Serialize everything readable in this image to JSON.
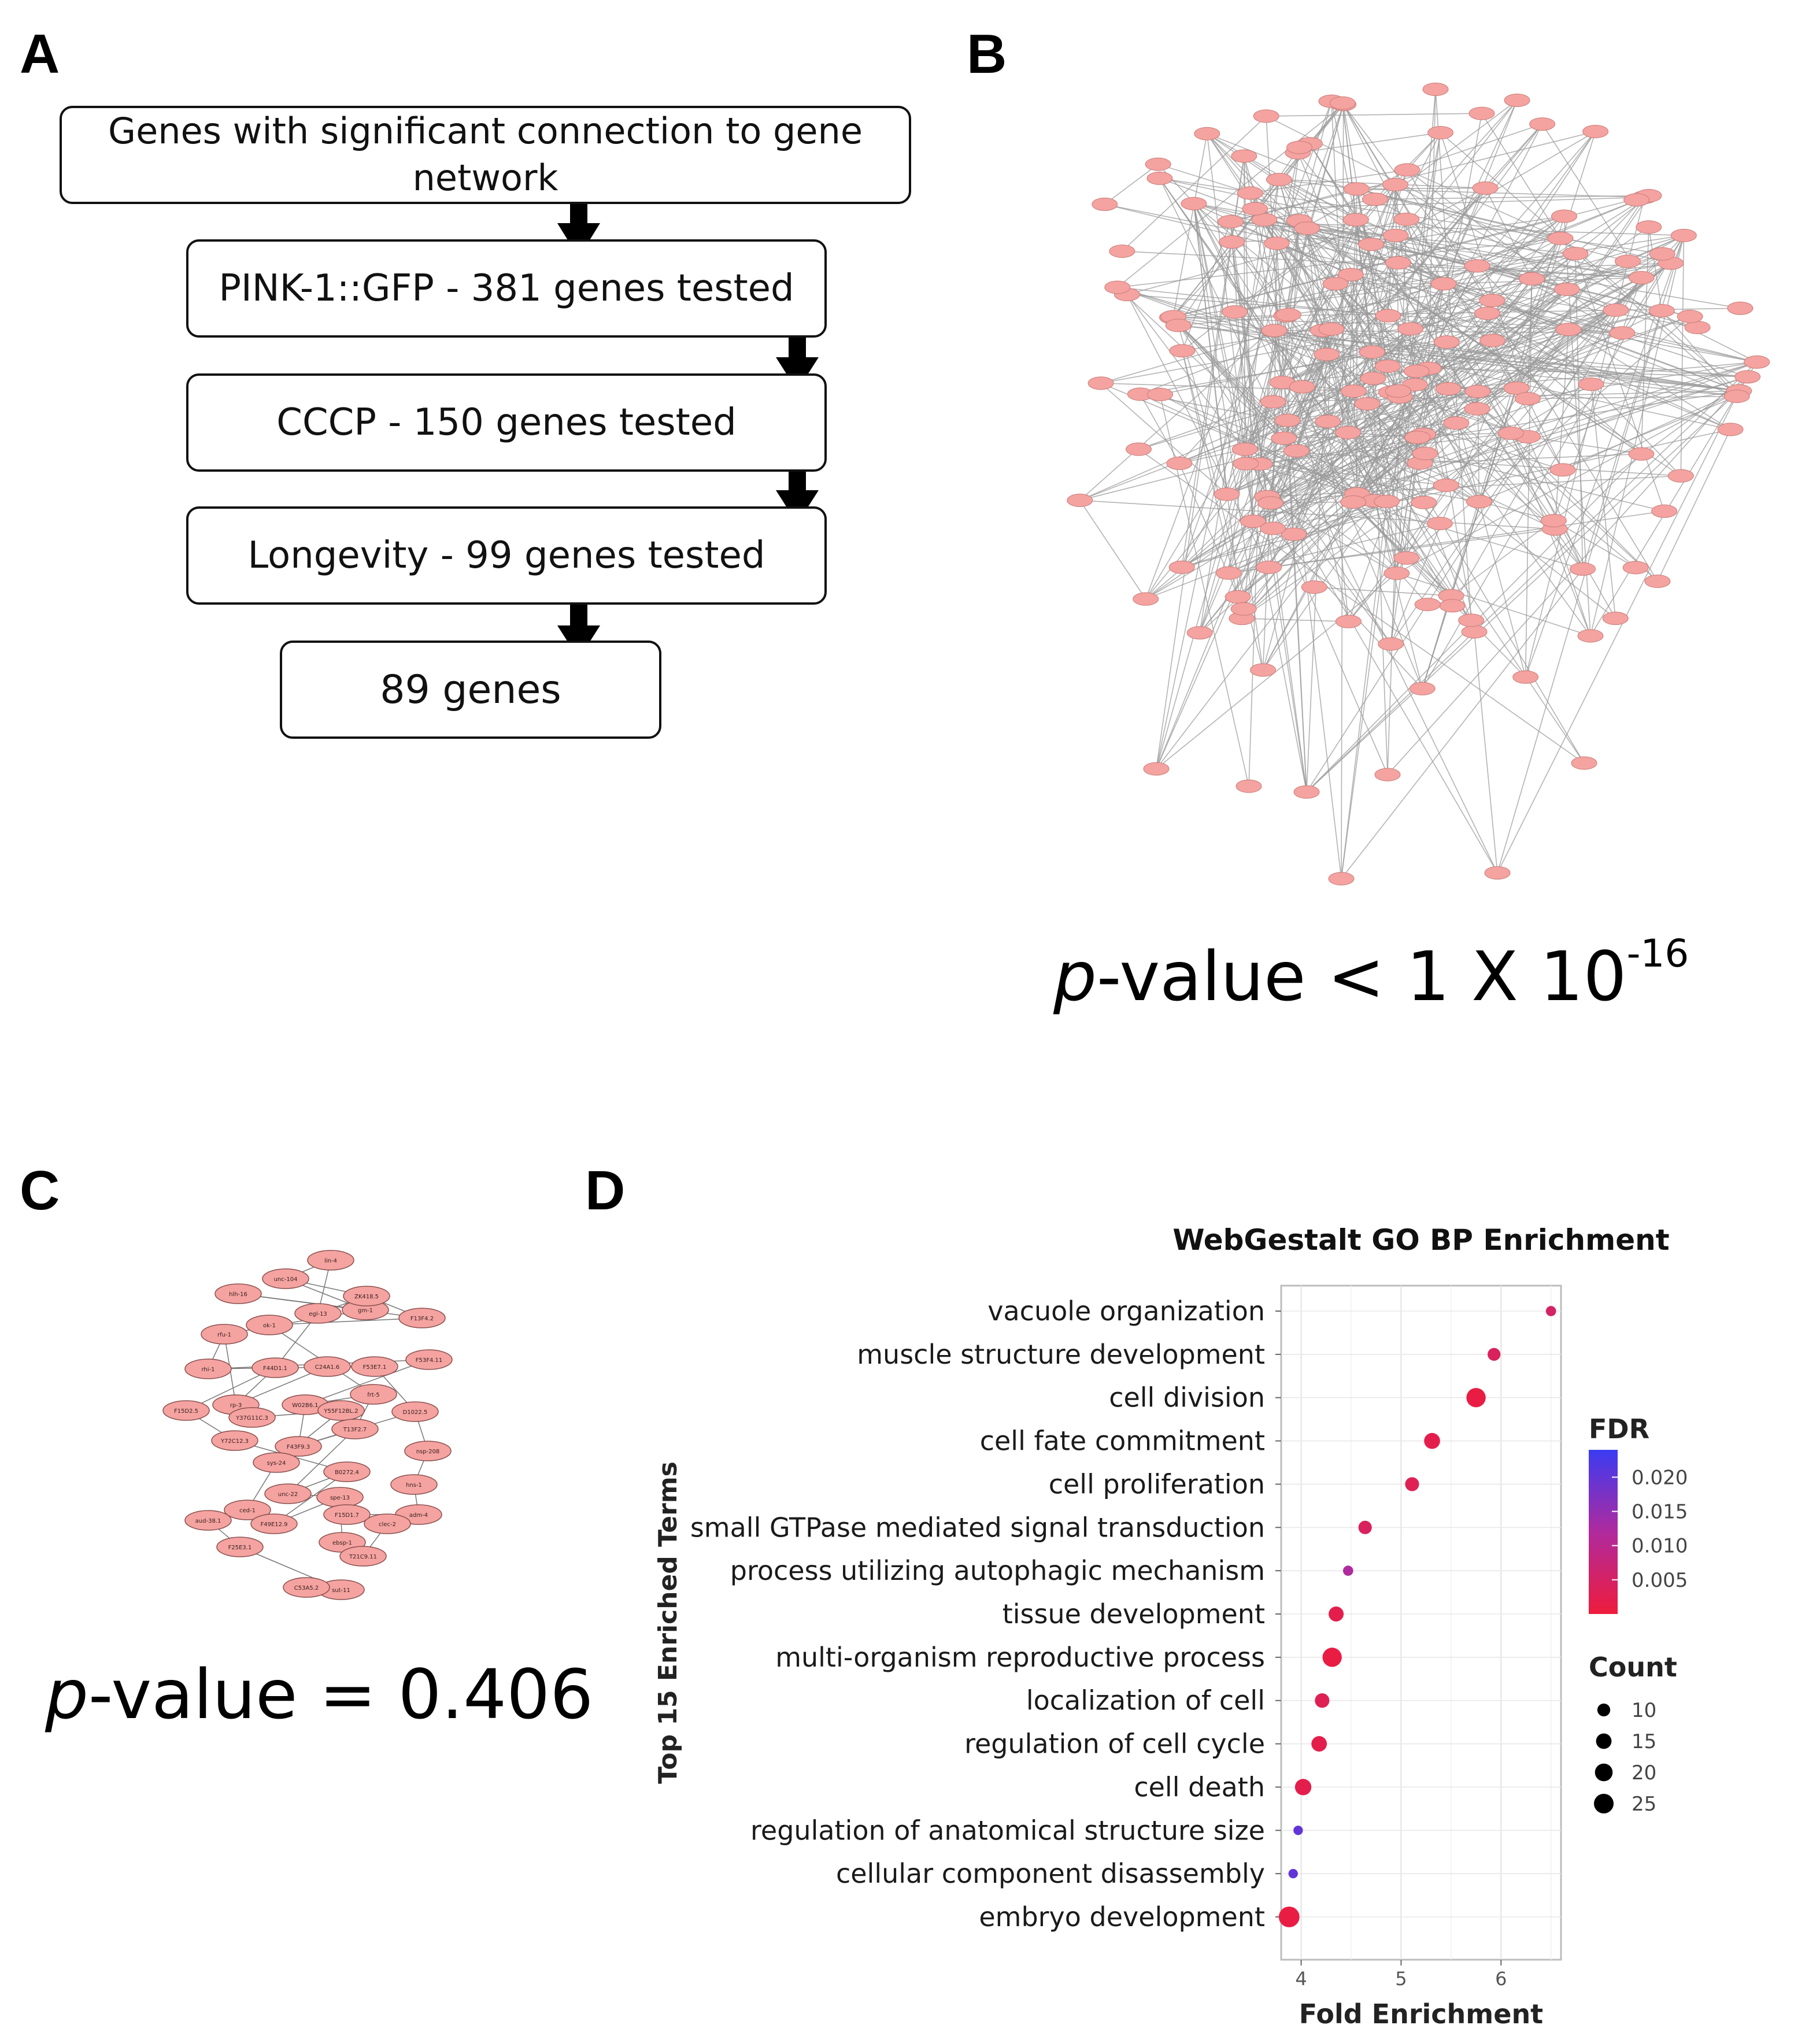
{
  "panels": {
    "a": "A",
    "b": "B",
    "c": "C",
    "d": "D"
  },
  "flowchart": {
    "boxes": [
      "Genes with significant connection to gene network",
      "PINK-1::GFP - 381 genes tested",
      "CCCP - 150 genes tested",
      "Longevity - 99 genes tested",
      "89 genes"
    ]
  },
  "network_b": {
    "p_label": "p",
    "p_rest": "-value < 1 X 10",
    "p_exp": "-16",
    "node_color": "#f4a3a0",
    "edge_color": "#9a9a9a"
  },
  "network_c": {
    "p_label": "p",
    "p_rest": "-value = 0.406",
    "node_labels": [
      "lin-4",
      "unc-104",
      "hlh-16",
      "gm-1",
      "egl-13",
      "ZK418.5",
      "F13F4.2",
      "rfu-1",
      "ok-1",
      "F53F4.11",
      "rhi-1",
      "F44D1.1",
      "rp-3",
      "C24A1.6",
      "F53E7.1",
      "W02B6.1",
      "frt-5",
      "F15D2.5",
      "Y37G11C.3",
      "Y55F12BL.2",
      "D1022.5",
      "F43F9.3",
      "T13F2.7",
      "Y72C12.3",
      "nsp-208",
      "hns-1",
      "sys-24",
      "B0272.4",
      "unc-22",
      "adm-4",
      "ced-1",
      "aud-38.1",
      "F49E12.9",
      "spe-13",
      "F15D1.7",
      "F25E3.1",
      "ebsp-1",
      "sut-11",
      "clec-2",
      "T21C9.11",
      "C53A5.2"
    ],
    "edges": [
      [
        0,
        1
      ],
      [
        0,
        4
      ],
      [
        1,
        3
      ],
      [
        1,
        5
      ],
      [
        2,
        3
      ],
      [
        3,
        7
      ],
      [
        4,
        5
      ],
      [
        4,
        11
      ],
      [
        5,
        6
      ],
      [
        6,
        8
      ],
      [
        7,
        10
      ],
      [
        7,
        12
      ],
      [
        8,
        16
      ],
      [
        9,
        10
      ],
      [
        10,
        14
      ],
      [
        11,
        17
      ],
      [
        12,
        13
      ],
      [
        12,
        18
      ],
      [
        13,
        14
      ],
      [
        14,
        20
      ],
      [
        15,
        16
      ],
      [
        15,
        21
      ],
      [
        16,
        22
      ],
      [
        17,
        23
      ],
      [
        18,
        19
      ],
      [
        19,
        26
      ],
      [
        20,
        24
      ],
      [
        21,
        22
      ],
      [
        22,
        28
      ],
      [
        23,
        27
      ],
      [
        24,
        25
      ],
      [
        25,
        29
      ],
      [
        26,
        30
      ],
      [
        27,
        28
      ],
      [
        27,
        32
      ],
      [
        28,
        33
      ],
      [
        29,
        34
      ],
      [
        30,
        31
      ],
      [
        31,
        35
      ],
      [
        32,
        33
      ],
      [
        33,
        36
      ],
      [
        34,
        38
      ],
      [
        35,
        37
      ],
      [
        36,
        39
      ],
      [
        37,
        40
      ],
      [
        38,
        39
      ],
      [
        11,
        12
      ],
      [
        9,
        15
      ],
      [
        20,
        21
      ],
      [
        2,
        6
      ]
    ]
  },
  "chart_data": {
    "type": "scatter",
    "title": "WebGestalt GO BP Enrichment",
    "xlabel": "Fold Enrichment",
    "ylabel": "Top 15 Enriched Terms",
    "xlim": [
      3.8,
      6.6
    ],
    "xticks": [
      4,
      5,
      6
    ],
    "grid": true,
    "categories": [
      "vacuole organization",
      "muscle structure development",
      "cell division",
      "cell fate commitment",
      "cell proliferation",
      "small GTPase mediated signal transduction",
      "process utilizing autophagic mechanism",
      "tissue development",
      "multi-organism reproductive process",
      "localization of cell",
      "regulation of cell cycle",
      "cell death",
      "regulation of anatomical structure size",
      "cellular component disassembly",
      "embryo development"
    ],
    "series": [
      {
        "name": "Fold Enrichment",
        "values": [
          6.5,
          5.93,
          5.75,
          5.31,
          5.11,
          4.64,
          4.47,
          4.35,
          4.31,
          4.21,
          4.18,
          4.02,
          3.97,
          3.92,
          3.88
        ]
      },
      {
        "name": "FDR",
        "values": [
          0.005,
          0.004,
          0.001,
          0.002,
          0.003,
          0.004,
          0.012,
          0.002,
          0.001,
          0.003,
          0.002,
          0.002,
          0.02,
          0.02,
          0.001
        ]
      },
      {
        "name": "Count",
        "values": [
          6,
          10,
          24,
          16,
          12,
          11,
          6,
          14,
          24,
          13,
          15,
          17,
          5,
          5,
          28
        ]
      }
    ],
    "legend": {
      "fdr_title": "FDR",
      "fdr_ticks": [
        "0.020",
        "0.015",
        "0.010",
        "0.005"
      ],
      "fdr_tick_values": [
        0.02,
        0.015,
        0.01,
        0.005
      ],
      "fdr_range": [
        0.0,
        0.024
      ],
      "fdr_colors": {
        "high": "#3b3bf2",
        "mid": "#b02a9e",
        "low": "#ee1c3c"
      },
      "count_title": "Count",
      "count_values": [
        10,
        15,
        20,
        25
      ],
      "count_labels": [
        "10",
        "15",
        "20",
        "25"
      ],
      "position": "right"
    }
  }
}
